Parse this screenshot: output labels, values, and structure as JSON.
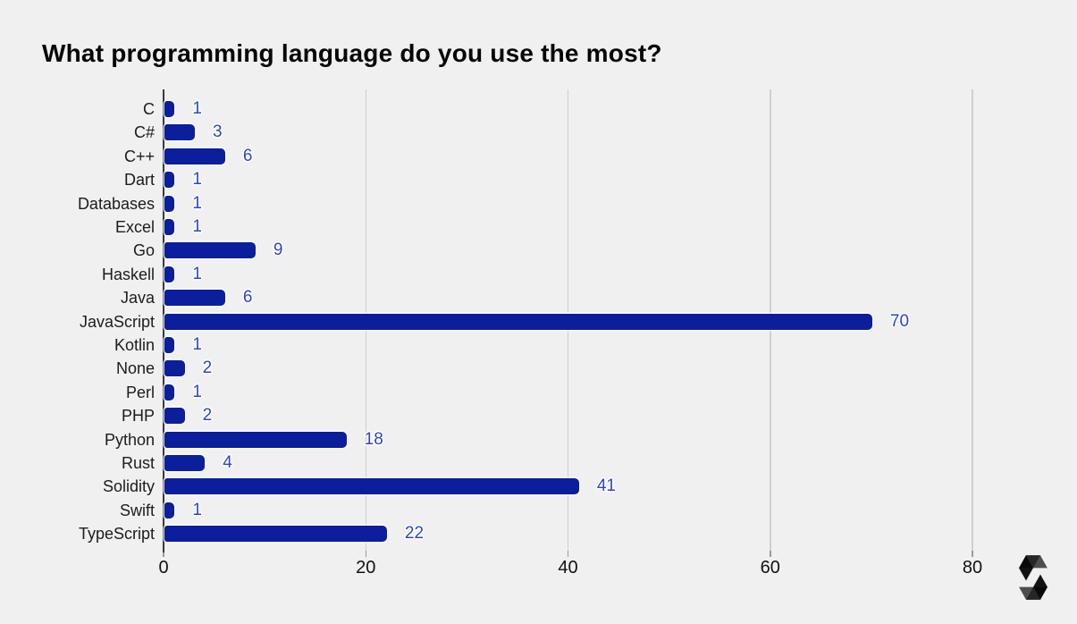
{
  "header": {
    "title": "What programming language do you use the most?"
  },
  "chart_data": {
    "type": "bar",
    "orientation": "horizontal",
    "title": "What programming language do you use the most?",
    "categories": [
      "C",
      "C#",
      "C++",
      "Dart",
      "Databases",
      "Excel",
      "Go",
      "Haskell",
      "Java",
      "JavaScript",
      "Kotlin",
      "None",
      "Perl",
      "PHP",
      "Python",
      "Rust",
      "Solidity",
      "Swift",
      "TypeScript"
    ],
    "values": [
      1,
      3,
      6,
      1,
      1,
      1,
      9,
      1,
      6,
      70,
      1,
      2,
      1,
      2,
      18,
      4,
      41,
      1,
      22
    ],
    "data_labels_shown": true,
    "xlabel": "",
    "ylabel": "",
    "xlim": [
      0,
      80
    ],
    "x_ticks": [
      0,
      20,
      40,
      60,
      80
    ],
    "grid": "vertical-lines-only",
    "legend": "none",
    "colors": {
      "background": "#f0f0f1",
      "bar": "#0b1e9b",
      "value_label": "#2d46be",
      "gridline": "#cfcfcf",
      "axis_line": "#3a3a3a",
      "tick_text": "#111111",
      "category_text": "#1c1c1c"
    }
  },
  "branding": {
    "logo_name": "solidity-logo"
  }
}
